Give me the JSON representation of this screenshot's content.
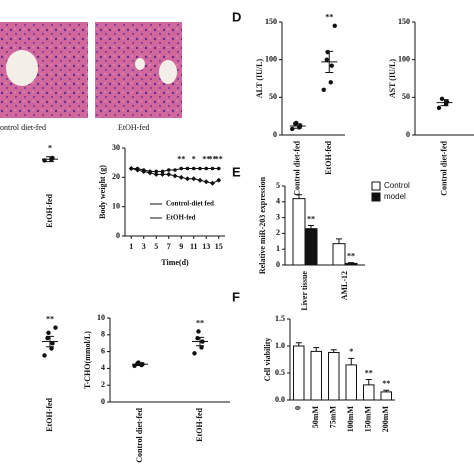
{
  "histology": {
    "labels": [
      "ontrol diet-fed",
      "EtOH-fed"
    ]
  },
  "panel_labels": [
    "D",
    "E",
    "F"
  ],
  "chart_data": [
    {
      "type": "dot",
      "y_label": "ALT (IU/L)",
      "categories": [
        "Control diet-fed",
        "EtOH-fed"
      ],
      "values": [
        12,
        97
      ],
      "errors": [
        3,
        14
      ],
      "points": [
        [
          8,
          10,
          12,
          15,
          16
        ],
        [
          60,
          70,
          92,
          100,
          110,
          145
        ]
      ],
      "ylim": [
        0,
        150
      ],
      "yticks": [
        0,
        50,
        100,
        150
      ],
      "annotations": [
        {
          "index": 1,
          "text": "**"
        }
      ]
    },
    {
      "type": "dot",
      "y_label": "AST (IU/L)",
      "categories": [
        "Control diet-fed"
      ],
      "values": [
        43
      ],
      "errors": [
        4
      ],
      "points": [
        [
          36,
          41,
          44,
          48
        ]
      ],
      "ylim": [
        0,
        150
      ],
      "yticks": [
        0,
        50,
        100,
        150
      ]
    },
    {
      "type": "dot",
      "categories": [
        "EtOH-fed"
      ],
      "values": [
        24
      ],
      "errors": [
        2
      ],
      "points": [
        [
          23,
          24,
          25
        ]
      ],
      "ylim": [
        0,
        40
      ],
      "annotations": [
        {
          "index": 0,
          "text": "*"
        }
      ]
    },
    {
      "type": "line",
      "y_label": "Body weight (g)",
      "x_label": "Time(d)",
      "x": [
        1,
        2,
        3,
        4,
        5,
        6,
        7,
        8,
        9,
        10,
        11,
        12,
        13,
        14,
        15
      ],
      "series": [
        {
          "name": "Control-diet fed",
          "color": "#111",
          "values": [
            23,
            23,
            22.5,
            22,
            22,
            22,
            22.5,
            22.5,
            23,
            23,
            23,
            23,
            23,
            23,
            23
          ]
        },
        {
          "name": "EtOH-fed",
          "color": "#111",
          "values": [
            23,
            22.5,
            22,
            21.5,
            21,
            21,
            21,
            20.5,
            20,
            19.5,
            19.5,
            19,
            18.5,
            18,
            19
          ]
        }
      ],
      "xlim": [
        0,
        16
      ],
      "xticks": [
        1,
        3,
        5,
        7,
        9,
        11,
        13,
        15
      ],
      "ylim": [
        0,
        30
      ],
      "yticks": [
        0,
        10,
        20,
        30
      ],
      "annotations": [
        {
          "x": 9,
          "text": "**"
        },
        {
          "x": 11,
          "text": "*"
        },
        {
          "x": 13,
          "text": "**"
        },
        {
          "x": 14,
          "text": "**"
        },
        {
          "x": 15,
          "text": "**"
        }
      ]
    },
    {
      "type": "bar",
      "y_label": "Relative miR-203 expression",
      "categories": [
        "Liver tissue",
        "AML-12"
      ],
      "series": [
        {
          "name": "Control",
          "color": "#ffffff",
          "values": [
            4.2,
            1.35
          ],
          "errors": [
            0.25,
            0.3
          ]
        },
        {
          "name": "model",
          "color": "#111111",
          "values": [
            2.3,
            0.1
          ],
          "errors": [
            0.2,
            0.05
          ]
        }
      ],
      "ylim": [
        0,
        5
      ],
      "yticks": [
        0,
        1,
        2,
        3,
        4,
        5
      ],
      "annotations": [
        {
          "series": 1,
          "index": 0,
          "text": "**"
        },
        {
          "series": 1,
          "index": 1,
          "text": "**"
        }
      ]
    },
    {
      "type": "dot",
      "categories": [
        "EtOH-fed"
      ],
      "values": [
        5.8
      ],
      "errors": [
        0.6
      ],
      "points": [
        [
          4.2,
          5,
          5.6,
          6.2,
          6.8,
          7.4
        ]
      ],
      "ylim": [
        0,
        10
      ],
      "annotations": [
        {
          "index": 0,
          "text": "**"
        }
      ]
    },
    {
      "type": "dot",
      "y_label": "T-CHO(mmol/L)",
      "categories": [
        "Control diet-fed",
        "EtOH-fed"
      ],
      "values": [
        4.5,
        7.2
      ],
      "errors": [
        0.15,
        0.5
      ],
      "points": [
        [
          4.3,
          4.4,
          4.5,
          4.6,
          4.7
        ],
        [
          5.8,
          6.5,
          7.2,
          7.6,
          8.4
        ]
      ],
      "ylim": [
        0,
        10
      ],
      "yticks": [
        0,
        2,
        4,
        6,
        8,
        10
      ],
      "annotations": [
        {
          "index": 1,
          "text": "**"
        }
      ]
    },
    {
      "type": "bar",
      "y_label": "Cell viability",
      "categories": [
        "0",
        "50mM",
        "75mM",
        "100mM",
        "150mM",
        "200mM"
      ],
      "series": [
        {
          "color": "#ffffff",
          "values": [
            1.0,
            0.9,
            0.88,
            0.65,
            0.28,
            0.15
          ],
          "errors": [
            0.06,
            0.07,
            0.05,
            0.12,
            0.1,
            0.03
          ]
        }
      ],
      "ylim": [
        0,
        1.5
      ],
      "yticks": [
        {
          "value": 0,
          "label": "0.0"
        },
        {
          "value": 0.5,
          "label": "0.5"
        },
        {
          "value": 1,
          "label": "1.0"
        },
        {
          "value": 1.5,
          "label": "1.5"
        }
      ],
      "annotations": [
        {
          "series": 0,
          "index": 3,
          "text": "*"
        },
        {
          "series": 0,
          "index": 4,
          "text": "**"
        },
        {
          "series": 0,
          "index": 5,
          "text": "**"
        }
      ]
    }
  ]
}
